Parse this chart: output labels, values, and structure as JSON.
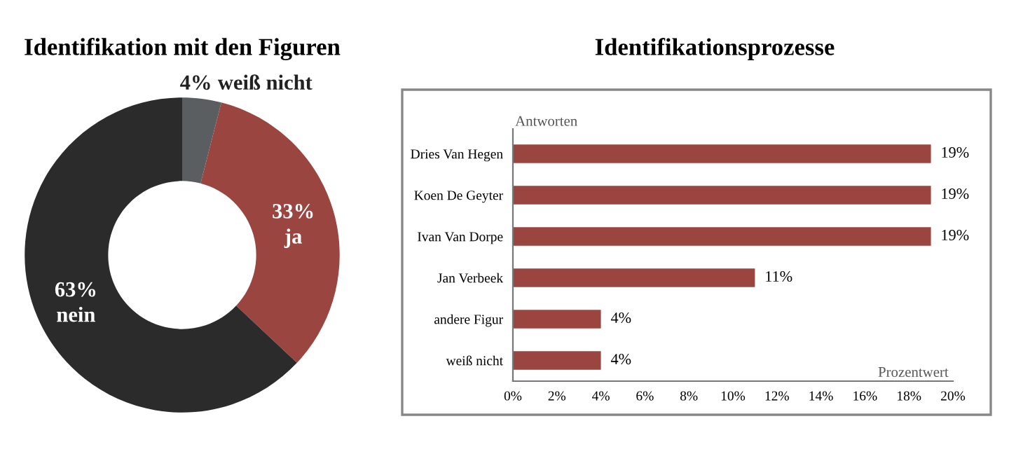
{
  "chart_data": [
    {
      "type": "donut",
      "title": "Identifikation mit den Figuren",
      "categories": [
        "weiß nicht",
        "ja",
        "nein"
      ],
      "values": [
        4,
        33,
        63
      ],
      "colors": [
        "#5b5e60",
        "#9b4541",
        "#2b2b2b"
      ],
      "value_labels": [
        "4%",
        "33%",
        "63%"
      ]
    },
    {
      "type": "bar",
      "orientation": "horizontal",
      "title": "Identifikationsprozesse",
      "ylabel": "Antworten",
      "xlabel": "Prozentwert",
      "categories": [
        "Dries Van Hegen",
        "Koen De Geyter",
        "Ivan Van Dorpe",
        "Jan Verbeek",
        "andere Figur",
        "weiß nicht"
      ],
      "values": [
        19,
        19,
        19,
        11,
        4,
        4
      ],
      "value_labels": [
        "19%",
        "19%",
        "19%",
        "11%",
        "4%",
        "4%"
      ],
      "color": "#9b4541",
      "xlim": [
        0,
        20
      ],
      "xticks": [
        {
          "value": 0,
          "label": "0%"
        },
        {
          "value": 2,
          "label": "2%"
        },
        {
          "value": 4,
          "label": "4%"
        },
        {
          "value": 6,
          "label": "6%"
        },
        {
          "value": 8,
          "label": "8%"
        },
        {
          "value": 10,
          "label": "10%"
        },
        {
          "value": 12,
          "label": "12%"
        },
        {
          "value": 14,
          "label": "14%"
        },
        {
          "value": 16,
          "label": "16%"
        },
        {
          "value": 18,
          "label": "18%"
        },
        {
          "value": 20,
          "label": "20%"
        }
      ],
      "grid": false,
      "legend": false
    }
  ]
}
